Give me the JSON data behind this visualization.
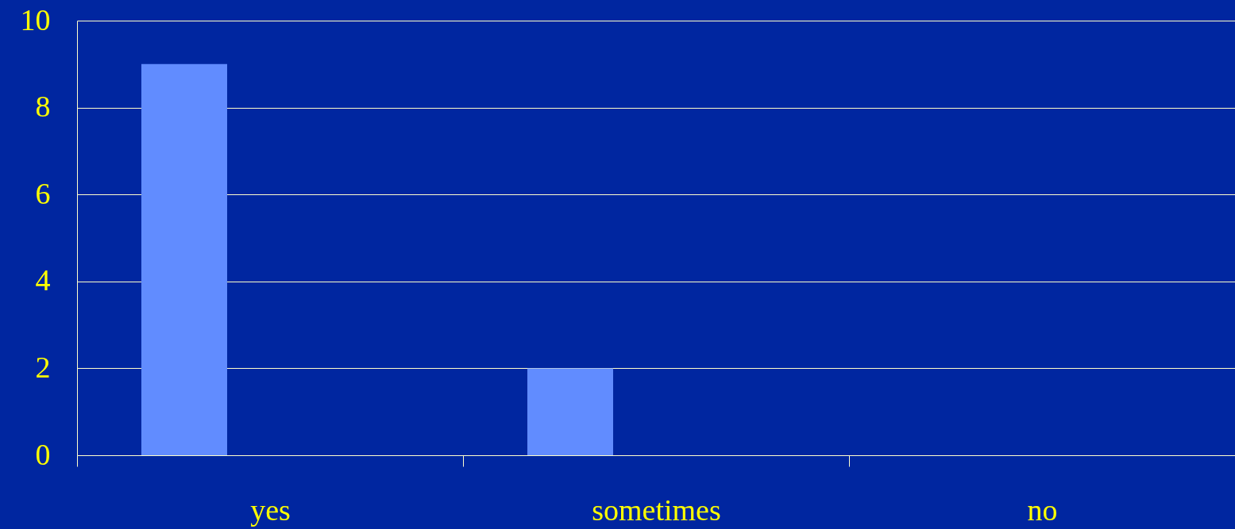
{
  "chart_data": {
    "type": "bar",
    "categories": [
      "yes",
      "sometimes",
      "no"
    ],
    "values": [
      9,
      2,
      0
    ],
    "color": "#618cff",
    "ylim": [
      0,
      10
    ],
    "yticks": [
      0,
      2,
      4,
      6,
      8,
      10
    ],
    "grid": "y"
  }
}
